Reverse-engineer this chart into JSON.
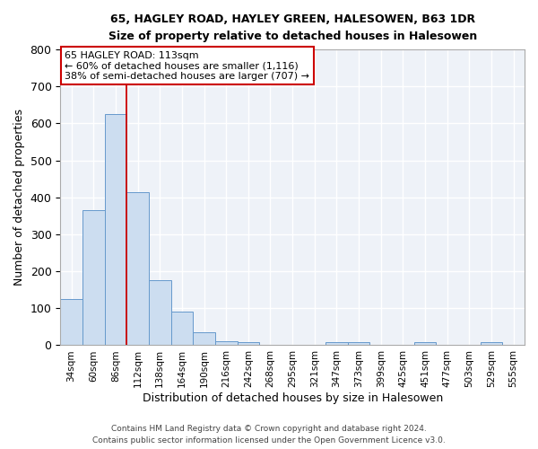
{
  "title1": "65, HAGLEY ROAD, HAYLEY GREEN, HALESOWEN, B63 1DR",
  "title2": "Size of property relative to detached houses in Halesowen",
  "xlabel": "Distribution of detached houses by size in Halesowen",
  "ylabel": "Number of detached properties",
  "categories": [
    "34sqm",
    "60sqm",
    "86sqm",
    "112sqm",
    "138sqm",
    "164sqm",
    "190sqm",
    "216sqm",
    "242sqm",
    "268sqm",
    "295sqm",
    "321sqm",
    "347sqm",
    "373sqm",
    "399sqm",
    "425sqm",
    "451sqm",
    "477sqm",
    "503sqm",
    "529sqm",
    "555sqm"
  ],
  "values": [
    125,
    365,
    625,
    415,
    175,
    90,
    35,
    12,
    8,
    0,
    0,
    0,
    8,
    8,
    0,
    0,
    8,
    0,
    0,
    8,
    0
  ],
  "bar_color": "#ccddf0",
  "bar_edge_color": "#6699cc",
  "annotation_text": "65 HAGLEY ROAD: 113sqm\n← 60% of detached houses are smaller (1,116)\n38% of semi-detached houses are larger (707) →",
  "annotation_box_color": "#ffffff",
  "annotation_box_edge": "#cc0000",
  "redline_x": 2.5,
  "footnote1": "Contains HM Land Registry data © Crown copyright and database right 2024.",
  "footnote2": "Contains public sector information licensed under the Open Government Licence v3.0.",
  "ylim": [
    0,
    800
  ],
  "yticks": [
    0,
    100,
    200,
    300,
    400,
    500,
    600,
    700,
    800
  ],
  "bg_color": "#eef2f8"
}
